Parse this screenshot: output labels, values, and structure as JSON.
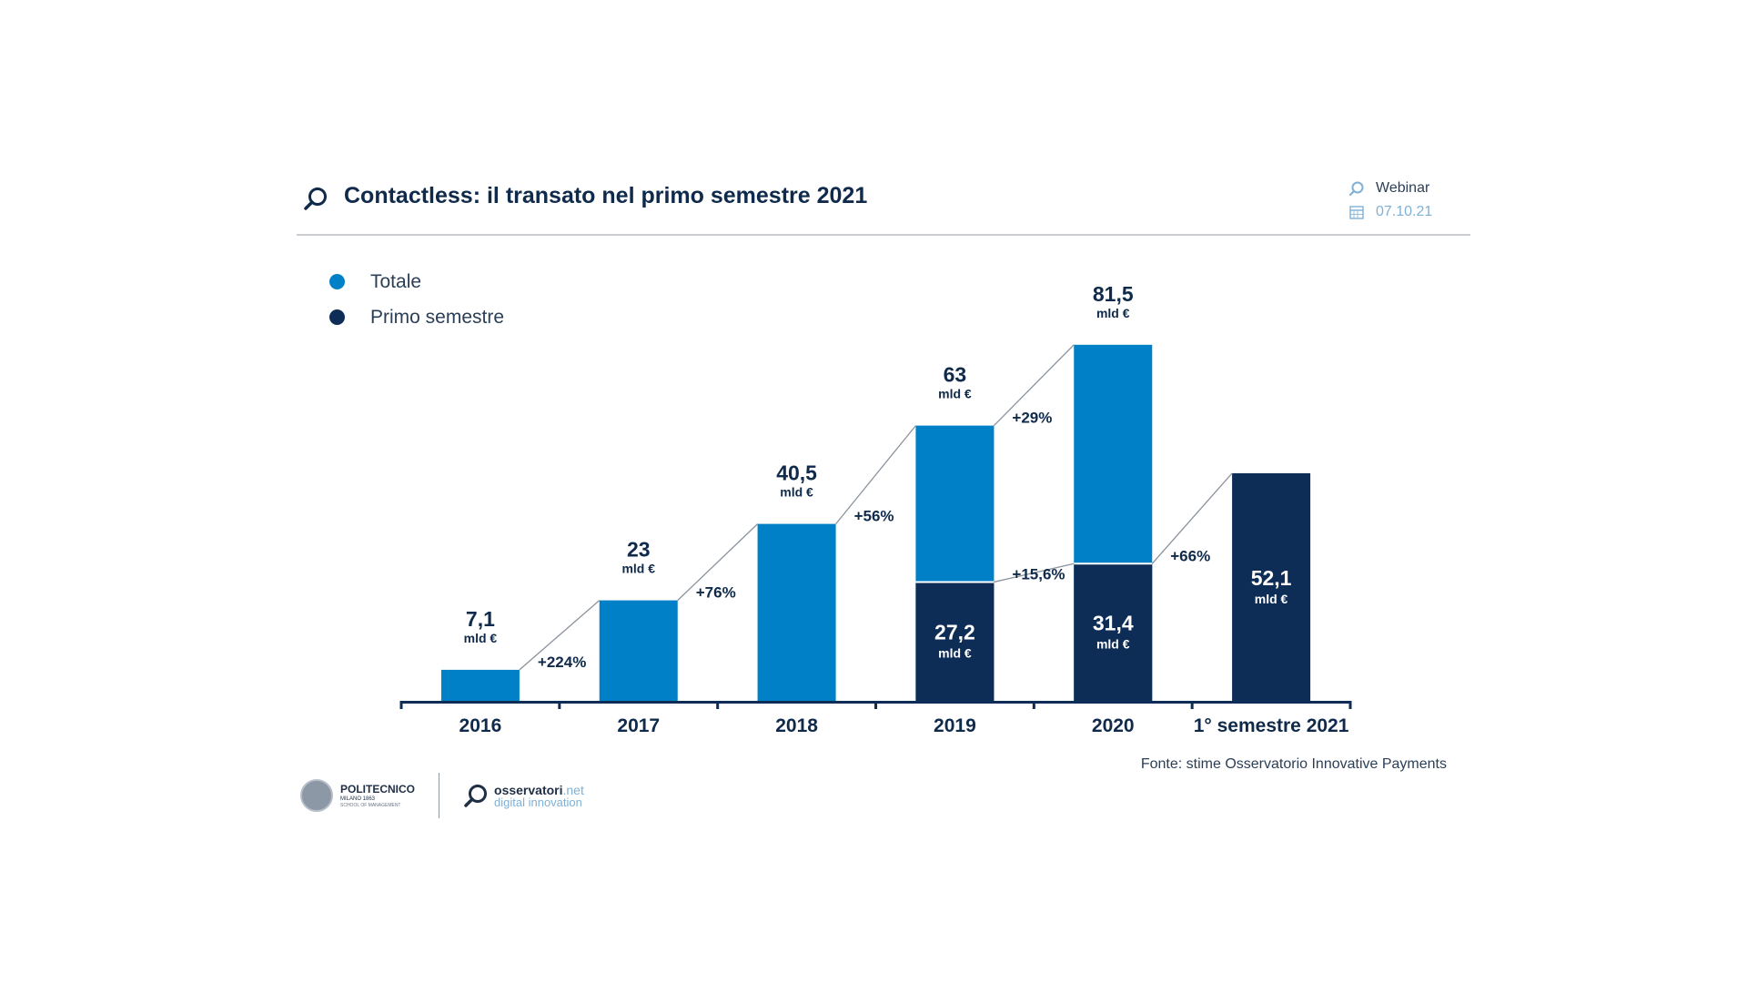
{
  "header": {
    "title": "Contactless: il transato nel primo semestre 2021",
    "event_label": "Webinar",
    "date": "07.10.21"
  },
  "colors": {
    "totale": "#0080c6",
    "primo_semestre": "#0d2d57",
    "text": "#0f2a4a"
  },
  "chart_data": {
    "type": "bar",
    "title": "Contactless: il transato nel primo semestre 2021",
    "unit": "mld €",
    "categories": [
      "2016",
      "2017",
      "2018",
      "2019",
      "2020",
      "1° semestre 2021"
    ],
    "series": [
      {
        "name": "Totale",
        "values": [
          7.1,
          23,
          40.5,
          63,
          81.5,
          null
        ],
        "labels": [
          "7,1",
          "23",
          "40,5",
          "63",
          "81,5",
          ""
        ]
      },
      {
        "name": "Primo semestre",
        "values": [
          null,
          null,
          null,
          27.2,
          31.4,
          52.1
        ],
        "labels": [
          "",
          "",
          "",
          "27,2",
          "31,4",
          "52,1"
        ]
      }
    ],
    "growth_annotations": [
      {
        "label": "+224%",
        "from": "2016",
        "to": "2017",
        "series": "Totale"
      },
      {
        "label": "+76%",
        "from": "2017",
        "to": "2018",
        "series": "Totale"
      },
      {
        "label": "+56%",
        "from": "2018",
        "to": "2019",
        "series": "Totale"
      },
      {
        "label": "+29%",
        "from": "2019",
        "to": "2020",
        "series": "Totale"
      },
      {
        "label": "+15,6%",
        "from": "2019",
        "to": "2020",
        "series": "Primo semestre"
      },
      {
        "label": "+66%",
        "from": "2020",
        "to": "1° semestre 2021",
        "series": "Primo semestre"
      }
    ],
    "ylim": [
      0,
      100
    ],
    "grid": false,
    "legend": "top-left"
  },
  "source": "Fonte: stime Osservatorio Innovative Payments",
  "footer": {
    "polimi_name": "POLITECNICO",
    "polimi_sub": "MILANO 1863",
    "polimi_school": "SCHOOL OF MANAGEMENT",
    "osservatori_name": "osservatori",
    "osservatori_tld": ".net",
    "osservatori_sub": "digital innovation"
  },
  "icons": {
    "header": "search-bubble-icon",
    "webinar": "search-bubble-icon",
    "date": "calendar-icon"
  }
}
